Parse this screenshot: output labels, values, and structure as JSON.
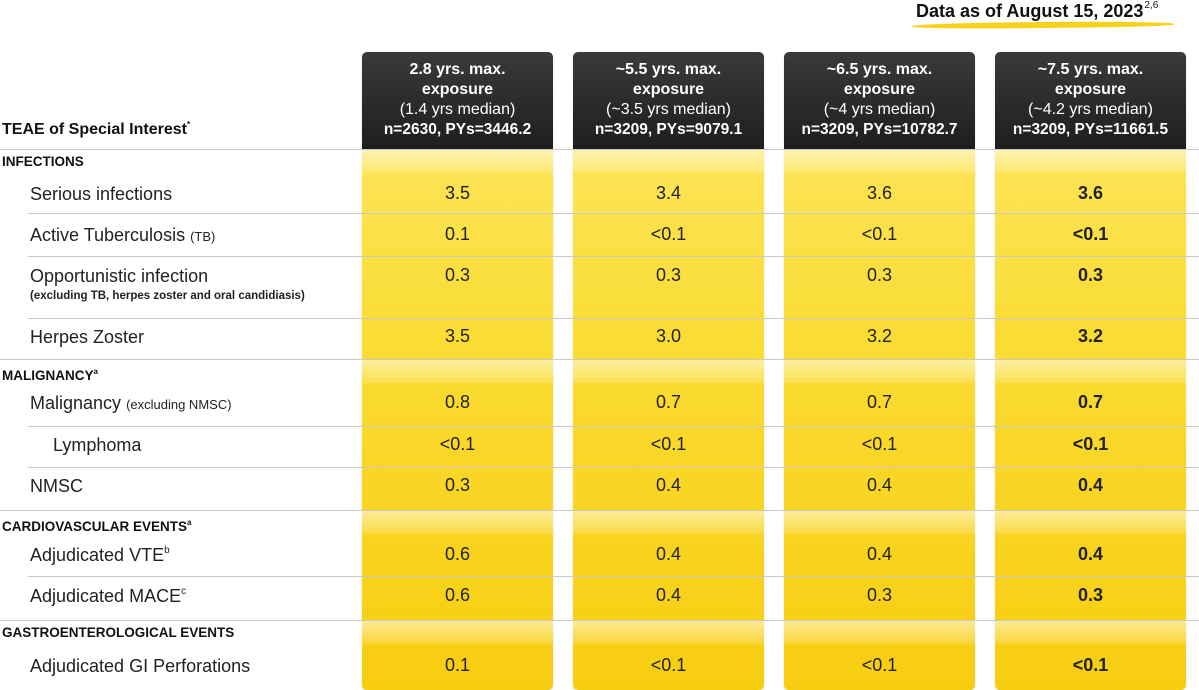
{
  "note": {
    "text": "Data as of August 15, 2023",
    "sup": "2,6"
  },
  "row_header": {
    "text": "TEAE of Special Interest",
    "sup": "*"
  },
  "columns": [
    {
      "line1": "2.8 yrs. max.",
      "line2": "exposure",
      "line3": "(1.4 yrs median)",
      "line4": "n=2630, PYs=3446.2"
    },
    {
      "line1": "~5.5 yrs. max.",
      "line2": "exposure",
      "line3": "(~3.5 yrs median)",
      "line4": "n=3209, PYs=9079.1"
    },
    {
      "line1": "~6.5 yrs. max.",
      "line2": "exposure",
      "line3": "(~4 yrs median)",
      "line4": "n=3209, PYs=10782.7"
    },
    {
      "line1": "~7.5 yrs. max.",
      "line2": "exposure",
      "line3": "(~4.2 yrs median)",
      "line4": "n=3209, PYs=11661.5"
    }
  ],
  "sections": [
    {
      "label": "INFECTIONS",
      "sup": ""
    },
    {
      "label": "MALIGNANCY",
      "sup": "a"
    },
    {
      "label": "CARDIOVASCULAR EVENTS",
      "sup": "a"
    },
    {
      "label": "GASTROENTEROLOGICAL EVENTS",
      "sup": ""
    }
  ],
  "rows": [
    {
      "label": "Serious infections",
      "small": "",
      "sup": "",
      "sub": "",
      "values": [
        "3.5",
        "3.4",
        "3.6",
        "3.6"
      ]
    },
    {
      "label": "Active Tuberculosis",
      "small": "(TB)",
      "sup": "",
      "sub": "",
      "values": [
        "0.1",
        "<0.1",
        "<0.1",
        "<0.1"
      ]
    },
    {
      "label": "Opportunistic infection",
      "small": "",
      "sup": "",
      "sub": "(excluding TB, herpes zoster and oral candidiasis)",
      "values": [
        "0.3",
        "0.3",
        "0.3",
        "0.3"
      ]
    },
    {
      "label": "Herpes Zoster",
      "small": "",
      "sup": "",
      "sub": "",
      "values": [
        "3.5",
        "3.0",
        "3.2",
        "3.2"
      ]
    },
    {
      "label": "Malignancy",
      "small": "(excluding NMSC)",
      "sup": "",
      "sub": "",
      "values": [
        "0.8",
        "0.7",
        "0.7",
        "0.7"
      ]
    },
    {
      "label": "Lymphoma",
      "small": "",
      "sup": "",
      "sub": "",
      "values": [
        "<0.1",
        "<0.1",
        "<0.1",
        "<0.1"
      ]
    },
    {
      "label": "NMSC",
      "small": "",
      "sup": "",
      "sub": "",
      "values": [
        "0.3",
        "0.4",
        "0.4",
        "0.4"
      ]
    },
    {
      "label": "Adjudicated VTE",
      "small": "",
      "sup": "b",
      "sub": "",
      "values": [
        "0.6",
        "0.4",
        "0.4",
        "0.4"
      ]
    },
    {
      "label": "Adjudicated MACE",
      "small": "",
      "sup": "c",
      "sub": "",
      "values": [
        "0.6",
        "0.4",
        "0.3",
        "0.3"
      ]
    },
    {
      "label": "Adjudicated GI Perforations",
      "small": "",
      "sup": "",
      "sub": "",
      "values": [
        "0.1",
        "<0.1",
        "<0.1",
        "<0.1"
      ]
    }
  ],
  "chart_data": {
    "type": "table",
    "columns": [
      "2.8 yrs. max. exposure",
      "~5.5 yrs. max. exposure",
      "~6.5 yrs. max. exposure",
      "~7.5 yrs. max. exposure"
    ],
    "rows": [
      "Serious infections",
      "Active Tuberculosis (TB)",
      "Opportunistic infection",
      "Herpes Zoster",
      "Malignancy (excluding NMSC)",
      "Lymphoma",
      "NMSC",
      "Adjudicated VTE",
      "Adjudicated MACE",
      "Adjudicated GI Perforations"
    ],
    "values": [
      [
        "3.5",
        "3.4",
        "3.6",
        "3.6"
      ],
      [
        "0.1",
        "<0.1",
        "<0.1",
        "<0.1"
      ],
      [
        "0.3",
        "0.3",
        "0.3",
        "0.3"
      ],
      [
        "3.5",
        "3.0",
        "3.2",
        "3.2"
      ],
      [
        "0.8",
        "0.7",
        "0.7",
        "0.7"
      ],
      [
        "<0.1",
        "<0.1",
        "<0.1",
        "<0.1"
      ],
      [
        "0.3",
        "0.4",
        "0.4",
        "0.4"
      ],
      [
        "0.6",
        "0.4",
        "0.4",
        "0.4"
      ],
      [
        "0.6",
        "0.4",
        "0.3",
        "0.3"
      ],
      [
        "0.1",
        "<0.1",
        "<0.1",
        "<0.1"
      ]
    ]
  }
}
